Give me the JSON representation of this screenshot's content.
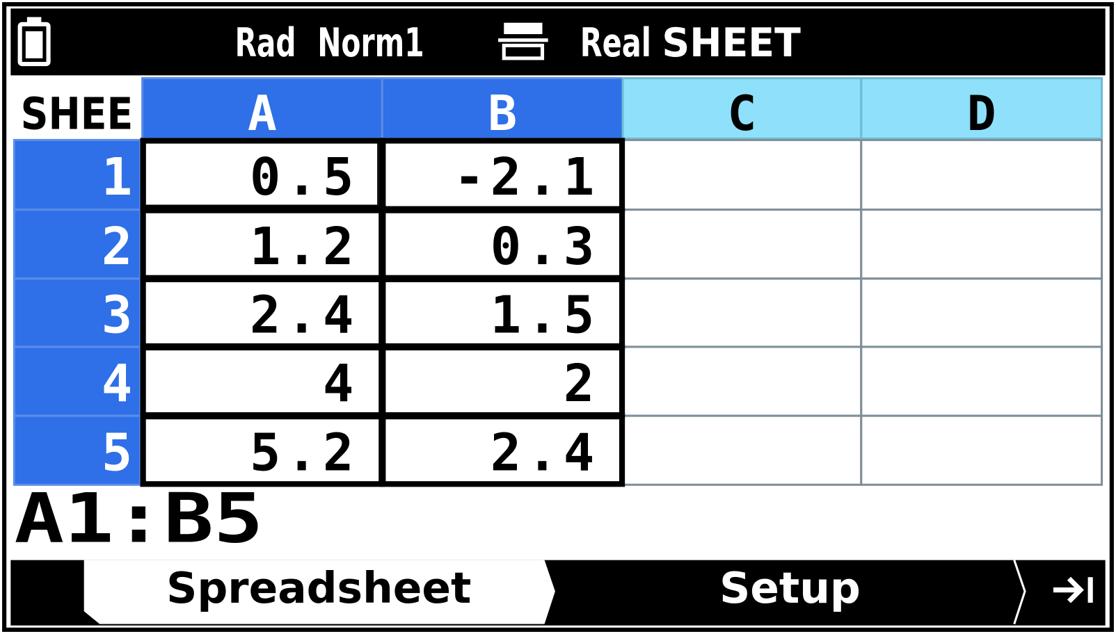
{
  "status": {
    "angle": "Rad",
    "display": "Norm1",
    "mode": "Real",
    "app": "SHEET"
  },
  "table": {
    "corner": "SHEE",
    "columns": [
      "A",
      "B",
      "C",
      "D"
    ],
    "rows": [
      {
        "label": "1",
        "cells": [
          "0.5",
          "-2.1"
        ]
      },
      {
        "label": "2",
        "cells": [
          "1.2",
          "0.3"
        ]
      },
      {
        "label": "3",
        "cells": [
          "2.4",
          "1.5"
        ]
      },
      {
        "label": "4",
        "cells": [
          "4",
          "2"
        ]
      },
      {
        "label": "5",
        "cells": [
          "5.2",
          "2.4"
        ]
      }
    ]
  },
  "input": "A1:B5",
  "tabs": [
    "Spreadsheet",
    "Setup"
  ]
}
